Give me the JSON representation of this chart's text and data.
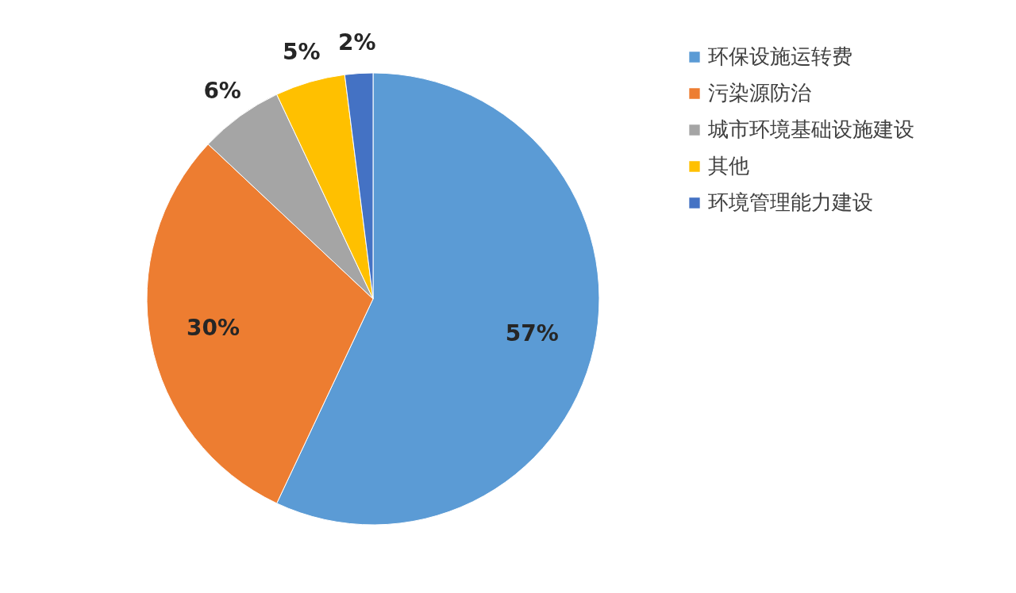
{
  "chart_data": {
    "type": "pie",
    "categories": [
      "环保设施运转费",
      "污染源防治",
      "城市环境基础设施建设",
      "其他",
      "环境管理能力建设"
    ],
    "values": [
      57,
      30,
      6,
      5,
      2
    ],
    "colors": [
      "#5b9bd5",
      "#ed7d31",
      "#a5a5a5",
      "#ffc000",
      "#4472c4"
    ],
    "value_labels": [
      "57%",
      "30%",
      "6%",
      "5%",
      "2%"
    ],
    "legend": "right"
  }
}
